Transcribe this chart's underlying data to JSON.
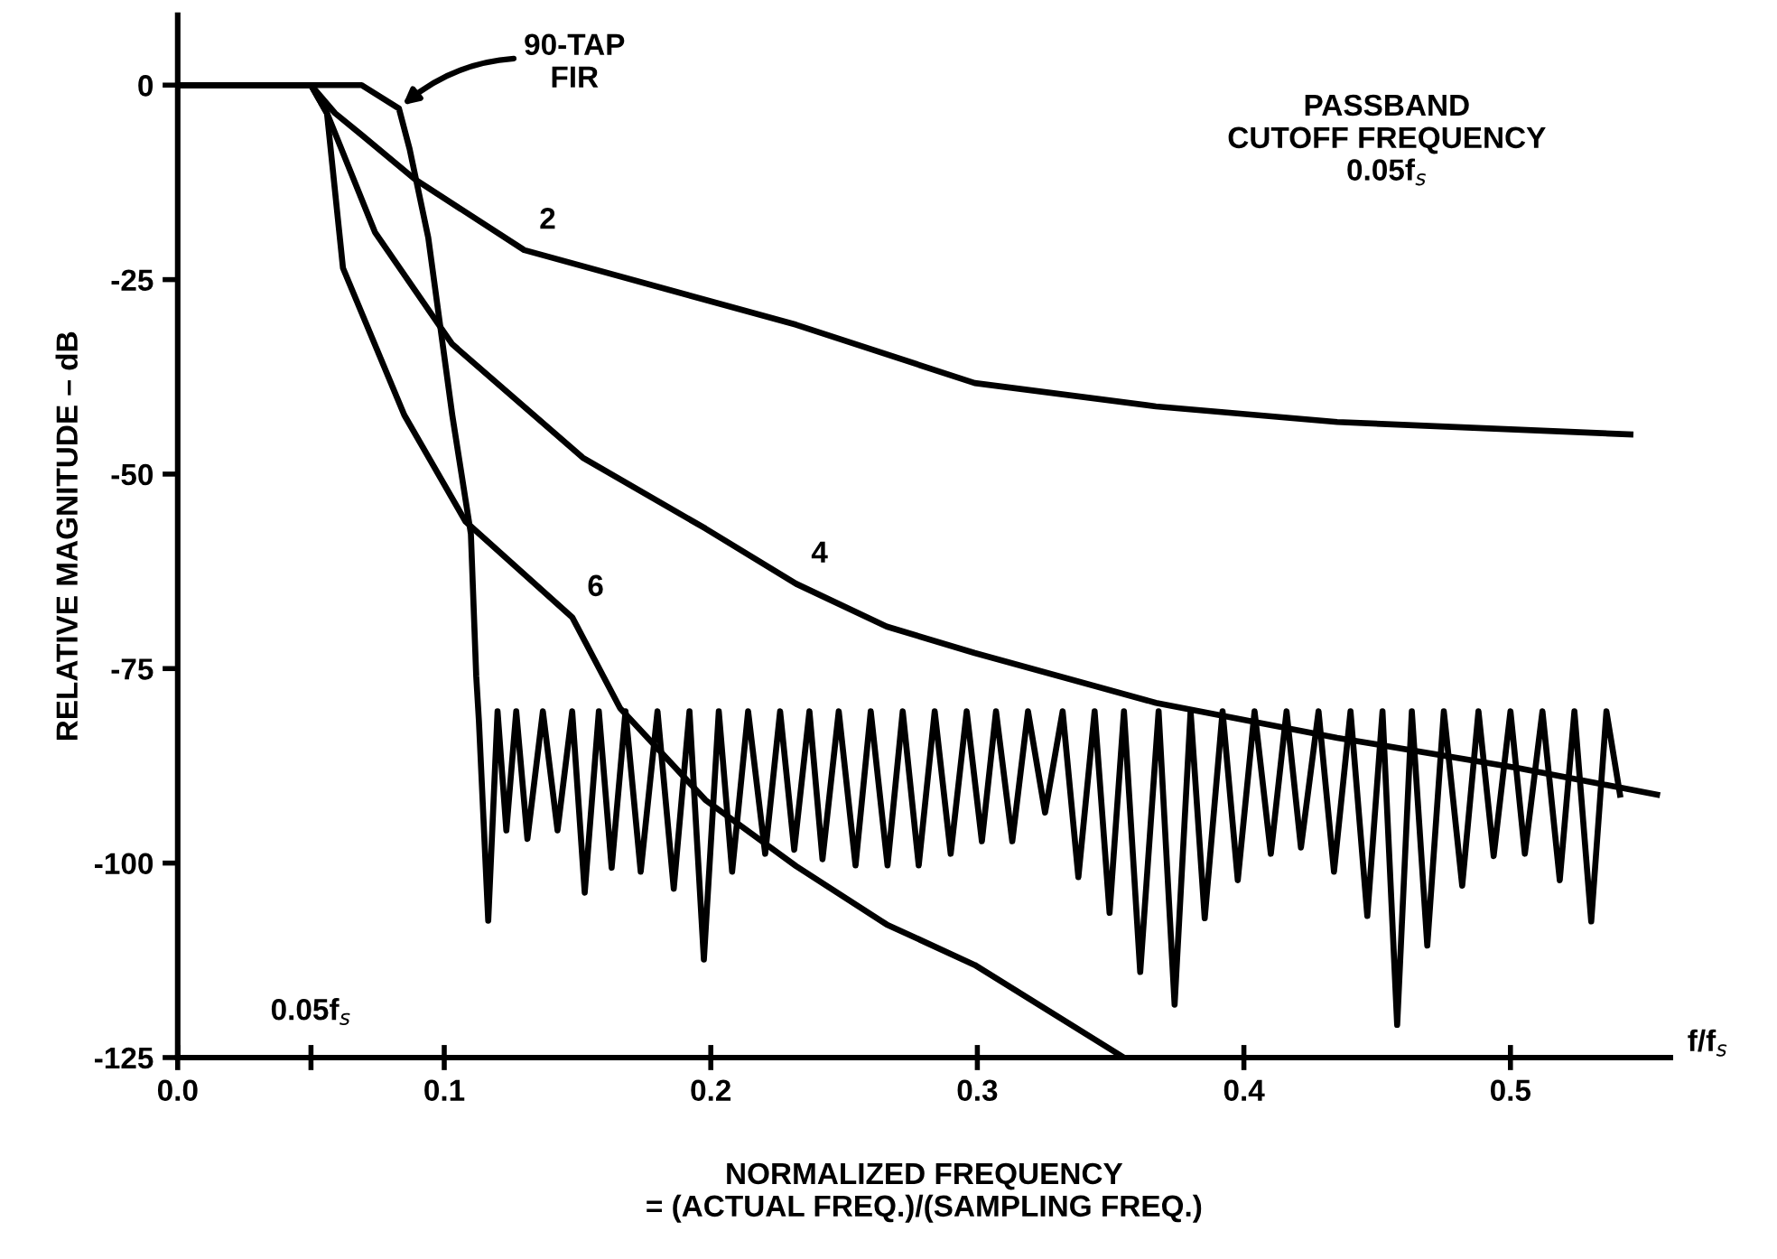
{
  "chart_data": {
    "type": "line",
    "xlabel": "NORMALIZED FREQUENCY\n= (ACTUAL FREQ.)/(SAMPLING FREQ.)",
    "ylabel": "RELATIVE MAGNITUDE – dB",
    "xlim": [
      0,
      0.56
    ],
    "ylim": [
      -125,
      9
    ],
    "xticks": [
      {
        "value": 0,
        "label": "0.0"
      },
      {
        "value": 0.05,
        "label": null
      },
      0.1,
      0.2,
      0.3,
      0.4,
      0.5
    ],
    "yticks": [
      0,
      -25,
      -50,
      -75,
      -100,
      -125
    ],
    "grid": false,
    "legend": false,
    "marker": "none",
    "line_style": "solid",
    "series": [
      {
        "name": "2",
        "color": "#000000",
        "x": [
          0,
          0.05,
          0.059,
          0.069,
          0.089,
          0.13,
          0.232,
          0.299,
          0.367,
          0.435,
          0.545
        ],
        "values": [
          0,
          0,
          -3.6,
          -6.4,
          -12.1,
          -21.2,
          -30.8,
          -38.3,
          -41.3,
          -43.3,
          -44.9
        ]
      },
      {
        "name": "4",
        "color": "#000000",
        "x": [
          0,
          0.05,
          0.056,
          0.074,
          0.103,
          0.152,
          0.198,
          0.232,
          0.266,
          0.299,
          0.367,
          0.435,
          0.503,
          0.555
        ],
        "values": [
          0,
          0,
          -3.6,
          -18.9,
          -33.3,
          -47.9,
          -57,
          -64.1,
          -69.6,
          -73,
          -79.4,
          -83.9,
          -87.8,
          -91.2
        ]
      },
      {
        "name": "6",
        "color": "#000000",
        "x": [
          0,
          0.05,
          0.056,
          0.062,
          0.085,
          0.108,
          0.148,
          0.166,
          0.198,
          0.232,
          0.266,
          0.299,
          0.355
        ],
        "values": [
          0,
          0,
          -3.6,
          -23.5,
          -42.4,
          -56.1,
          -68.4,
          -80.1,
          -91.9,
          -100.4,
          -107.9,
          -113.1,
          -125
        ]
      },
      {
        "color": "#000000",
        "x": [
          0,
          0.069,
          0.083,
          0.087,
          0.094,
          0.103,
          0.11,
          0.112,
          0.113,
          0.1165,
          0.12,
          0.1233,
          0.127,
          0.1312,
          0.137,
          0.1425,
          0.148,
          0.1527,
          0.158,
          0.1628,
          0.168,
          0.1737,
          0.18,
          0.1861,
          0.192,
          0.1974,
          0.203,
          0.208,
          0.214,
          0.2204,
          0.226,
          0.2313,
          0.237,
          0.2419,
          0.248,
          0.2543,
          0.26,
          0.2663,
          0.272,
          0.278,
          0.284,
          0.29,
          0.296,
          0.3017,
          0.307,
          0.3131,
          0.319,
          0.3254,
          0.332,
          0.3379,
          0.344,
          0.3496,
          0.355,
          0.3611,
          0.368,
          0.374,
          0.38,
          0.3853,
          0.392,
          0.3977,
          0.404,
          0.4101,
          0.416,
          0.4214,
          0.428,
          0.4338,
          0.44,
          0.4463,
          0.452,
          0.4575,
          0.463,
          0.4688,
          0.475,
          0.4819,
          0.488,
          0.4937,
          0.5,
          0.5054,
          0.512,
          0.5185,
          0.524,
          0.5303,
          0.536,
          0.5411
        ],
        "values": [
          0,
          0,
          -3,
          -8.2,
          -19.6,
          -42.4,
          -57.7,
          -76,
          -81.7,
          -107.4,
          -80.5,
          -95.8,
          -80.5,
          -96.9,
          -80.5,
          -95.8,
          -80.5,
          -103.8,
          -80.5,
          -100.6,
          -80.5,
          -101.1,
          -80.5,
          -103.3,
          -80.5,
          -112.4,
          -80.5,
          -101.1,
          -80.5,
          -98.8,
          -80.5,
          -98.3,
          -80.5,
          -99.5,
          -80.5,
          -100.3,
          -80.5,
          -100.3,
          -80.5,
          -100.3,
          -80.5,
          -98.8,
          -80.5,
          -97.2,
          -80.5,
          -97.2,
          -80.5,
          -93.5,
          -80.5,
          -101.8,
          -80.5,
          -106.4,
          -80.5,
          -114.0,
          -80.5,
          -118.2,
          -80.5,
          -107.1,
          -80.5,
          -102.2,
          -80.5,
          -98.8,
          -80.5,
          -98.0,
          -80.5,
          -101.1,
          -80.5,
          -106.8,
          -80.5,
          -120.8,
          -80.5,
          -110.6,
          -80.5,
          -102.9,
          -80.5,
          -99.1,
          -80.5,
          -98.8,
          -80.5,
          -102.2,
          -80.5,
          -107.5,
          -80.5,
          -91.2
        ]
      }
    ],
    "annotations": [
      {
        "text": "90-TAP\nFIR",
        "x": 0.083,
        "y": -3
      },
      "PASSBAND\nCUTOFF FREQUENCY\n0.05f$_{s}$",
      "0.05f$_{s}$",
      "f/f$_{s}$"
    ]
  }
}
